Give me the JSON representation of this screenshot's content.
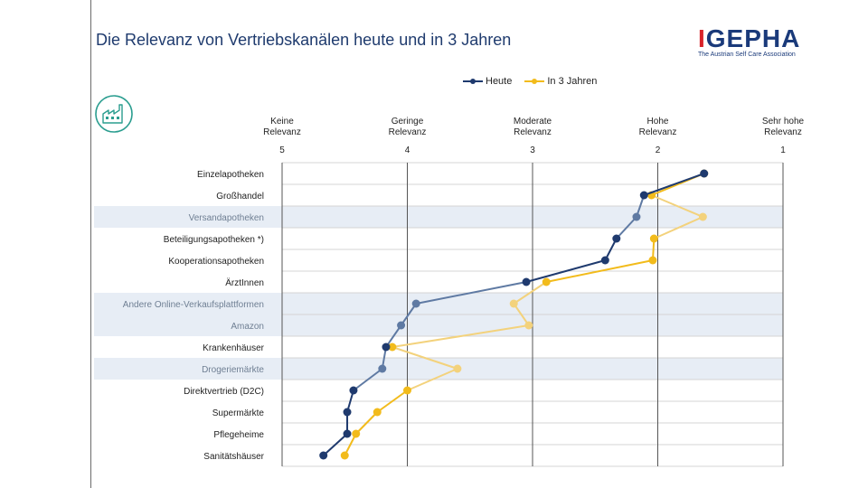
{
  "title": "Die Relevanz von Vertriebskanälen heute und in 3 Jahren",
  "logo": {
    "main_i": "I",
    "main_rest": "GEPHA",
    "subtitle": "The Austrian Self Care Association"
  },
  "colors": {
    "heute": "#1f3a6e",
    "in3": "#f2bb1b",
    "heute_faded": "#5f7aa3",
    "in3_faded": "#f3d27c",
    "row_band": "#e7edf5",
    "title": "#1f3b6e",
    "icon": "#2a9d8f"
  },
  "icon": "factory-icon",
  "chart_data": {
    "type": "line",
    "orientation": "horizontal-categories",
    "x_axis": {
      "range": [
        5,
        1
      ],
      "ticks": [
        {
          "value": 5,
          "label_lines": [
            "Keine",
            "Relevanz"
          ],
          "number": "5"
        },
        {
          "value": 4,
          "label_lines": [
            "Geringe",
            "Relevanz"
          ],
          "number": "4"
        },
        {
          "value": 3,
          "label_lines": [
            "Moderate",
            "Relevanz"
          ],
          "number": "3"
        },
        {
          "value": 2,
          "label_lines": [
            "Hohe",
            "Relevanz"
          ],
          "number": "2"
        },
        {
          "value": 1,
          "label_lines": [
            "Sehr hohe",
            "Relevanz"
          ],
          "number": "1"
        }
      ],
      "grid": true
    },
    "legend_placement": "top",
    "categories": [
      {
        "label": "Einzelapotheken",
        "highlighted": false
      },
      {
        "label": "Großhandel",
        "highlighted": false
      },
      {
        "label": "Versandapotheken",
        "highlighted": true
      },
      {
        "label": "Beteiligungsapotheken *)",
        "highlighted": false
      },
      {
        "label": "Kooperationsapotheken",
        "highlighted": false
      },
      {
        "label": "ÄrztInnen",
        "highlighted": false
      },
      {
        "label": "Andere Online-Verkaufsplattformen",
        "highlighted": true
      },
      {
        "label": "Amazon",
        "highlighted": true
      },
      {
        "label": "Krankenhäuser",
        "highlighted": false
      },
      {
        "label": "Drogeriemärkte",
        "highlighted": true
      },
      {
        "label": "Direktvertrieb (D2C)",
        "highlighted": false
      },
      {
        "label": "Supermärkte",
        "highlighted": false
      },
      {
        "label": "Pflegeheime",
        "highlighted": false
      },
      {
        "label": "Sanitätshäuser",
        "highlighted": false
      }
    ],
    "series": [
      {
        "name": "Heute",
        "color": "#1f3a6e",
        "values": [
          1.63,
          2.11,
          2.17,
          2.33,
          2.42,
          3.05,
          3.93,
          4.05,
          4.17,
          4.2,
          4.43,
          4.48,
          4.48,
          4.67
        ]
      },
      {
        "name": "In 3 Jahren",
        "color": "#f2bb1b",
        "values": [
          1.63,
          2.05,
          1.64,
          2.03,
          2.04,
          2.89,
          3.15,
          3.03,
          4.12,
          3.6,
          4.0,
          4.24,
          4.41,
          4.5
        ]
      }
    ]
  }
}
